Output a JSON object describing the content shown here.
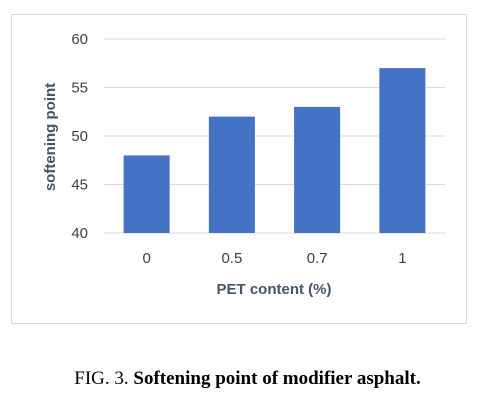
{
  "chart_data": {
    "type": "bar",
    "categories": [
      "0",
      "0.5",
      "0.7",
      "1"
    ],
    "values": [
      48,
      52,
      53,
      57
    ],
    "ylim": [
      40,
      60
    ],
    "yticks": [
      40,
      45,
      50,
      55,
      60
    ],
    "xlabel": "PET content (%)",
    "ylabel": "softening point",
    "grid": "horizontal",
    "legend": "none",
    "colors": {
      "bar": "#4472c4",
      "grid": "#d9d9d9",
      "tick_text": "#404040",
      "axis_title": "#44546a"
    }
  },
  "caption": {
    "label": "FIG. 3.",
    "text": "Softening point of modifier asphalt."
  }
}
